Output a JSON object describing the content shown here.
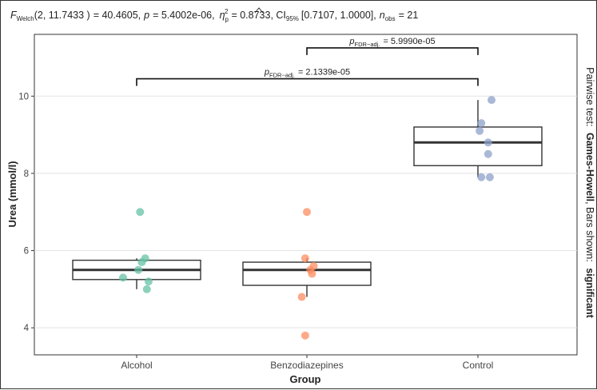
{
  "chart_data": {
    "type": "box",
    "subtitle": {
      "stat_symbol": "F",
      "stat_sub": "Welch",
      "df": "(2, 11.7433 )",
      "stat_value": "= 40.4605,",
      "p_symbol": "p",
      "p_value": "= 5.4002e-06,",
      "effect_symbol": "η",
      "effect_sub": "p",
      "effect_sup": "2",
      "effect_value": "= 0.8733, CI",
      "ci_sub": "95%",
      "ci_value": "[0.7107, 1.0000],",
      "n_symbol": "n",
      "n_sub": "obs",
      "n_value": "= 21"
    },
    "xlabel": "Group",
    "ylabel": "Urea (mmol/l)",
    "ylim": [
      3.3,
      11.6
    ],
    "yticks": [
      4,
      6,
      8,
      10
    ],
    "grid": true,
    "categories": [
      "Alcohol",
      "Benzodiazepines",
      "Control"
    ],
    "colors": [
      "#66c2a5",
      "#fc8d62",
      "#8da0cb"
    ],
    "box_stats": [
      {
        "group": "Alcohol",
        "lower_whisker": 5.0,
        "q1": 5.25,
        "median": 5.5,
        "q3": 5.75,
        "upper_whisker": 5.8
      },
      {
        "group": "Benzodiazepines",
        "lower_whisker": 4.8,
        "q1": 5.1,
        "median": 5.5,
        "q3": 5.7,
        "upper_whisker": 5.8
      },
      {
        "group": "Control",
        "lower_whisker": 7.9,
        "q1": 8.2,
        "median": 8.8,
        "q3": 9.2,
        "upper_whisker": 9.9
      }
    ],
    "points": [
      {
        "group": 0,
        "x_jitter": 0.02,
        "y": 7.0
      },
      {
        "group": 0,
        "x_jitter": 0.05,
        "y": 5.8
      },
      {
        "group": 0,
        "x_jitter": 0.03,
        "y": 5.7
      },
      {
        "group": 0,
        "x_jitter": 0.01,
        "y": 5.5
      },
      {
        "group": 0,
        "x_jitter": -0.08,
        "y": 5.3
      },
      {
        "group": 0,
        "x_jitter": 0.07,
        "y": 5.2
      },
      {
        "group": 0,
        "x_jitter": 0.06,
        "y": 5.0
      },
      {
        "group": 1,
        "x_jitter": 0.0,
        "y": 7.0
      },
      {
        "group": 1,
        "x_jitter": -0.01,
        "y": 5.8
      },
      {
        "group": 1,
        "x_jitter": 0.04,
        "y": 5.6
      },
      {
        "group": 1,
        "x_jitter": 0.02,
        "y": 5.5
      },
      {
        "group": 1,
        "x_jitter": 0.03,
        "y": 5.4
      },
      {
        "group": 1,
        "x_jitter": -0.03,
        "y": 4.8
      },
      {
        "group": 1,
        "x_jitter": -0.01,
        "y": 3.8
      },
      {
        "group": 2,
        "x_jitter": 0.08,
        "y": 9.9
      },
      {
        "group": 2,
        "x_jitter": 0.02,
        "y": 9.3
      },
      {
        "group": 2,
        "x_jitter": 0.01,
        "y": 9.1
      },
      {
        "group": 2,
        "x_jitter": 0.06,
        "y": 8.8
      },
      {
        "group": 2,
        "x_jitter": 0.06,
        "y": 8.5
      },
      {
        "group": 2,
        "x_jitter": 0.02,
        "y": 7.9
      },
      {
        "group": 2,
        "x_jitter": 0.07,
        "y": 7.9
      }
    ],
    "comparisons": [
      {
        "group1": 1,
        "group2": 2,
        "y": 11.25,
        "label_symbol": "p",
        "label_sub": "FDR−adj.",
        "label_value": "= 5.9990e-05"
      },
      {
        "group1": 0,
        "group2": 2,
        "y": 10.45,
        "label_symbol": "p",
        "label_sub": "FDR−adj.",
        "label_value": "= 2.1339e-05"
      }
    ],
    "caption": {
      "prefix": "Pairwise test: ",
      "test": "Games-Howell",
      "middle": ", Bars shown: ",
      "shown": "significant"
    }
  }
}
